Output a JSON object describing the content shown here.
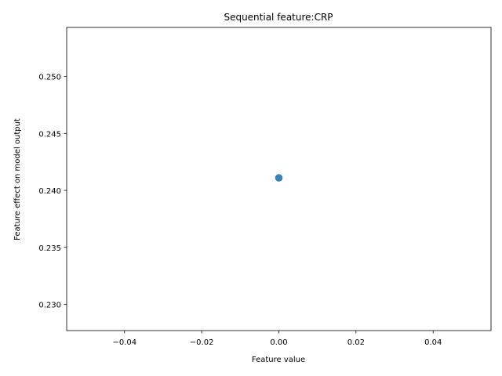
{
  "chart_data": {
    "type": "scatter",
    "title": "Sequential feature:CRP",
    "xlabel": "Feature value",
    "ylabel": "Feature effect on model output",
    "xlim": [
      -0.055,
      0.055
    ],
    "ylim": [
      0.2277,
      0.2543
    ],
    "xticks": [
      -0.04,
      -0.02,
      0.0,
      0.02,
      0.04
    ],
    "xtick_labels": [
      "−0.04",
      "−0.02",
      "0.00",
      "0.02",
      "0.04"
    ],
    "yticks": [
      0.23,
      0.235,
      0.24,
      0.245,
      0.25
    ],
    "ytick_labels": [
      "0.230",
      "0.235",
      "0.240",
      "0.245",
      "0.250"
    ],
    "series": [
      {
        "points": [
          {
            "x": 0.0,
            "y": 0.2411
          }
        ],
        "color": "#1f77b4"
      }
    ],
    "grid": false,
    "legend": "none"
  }
}
